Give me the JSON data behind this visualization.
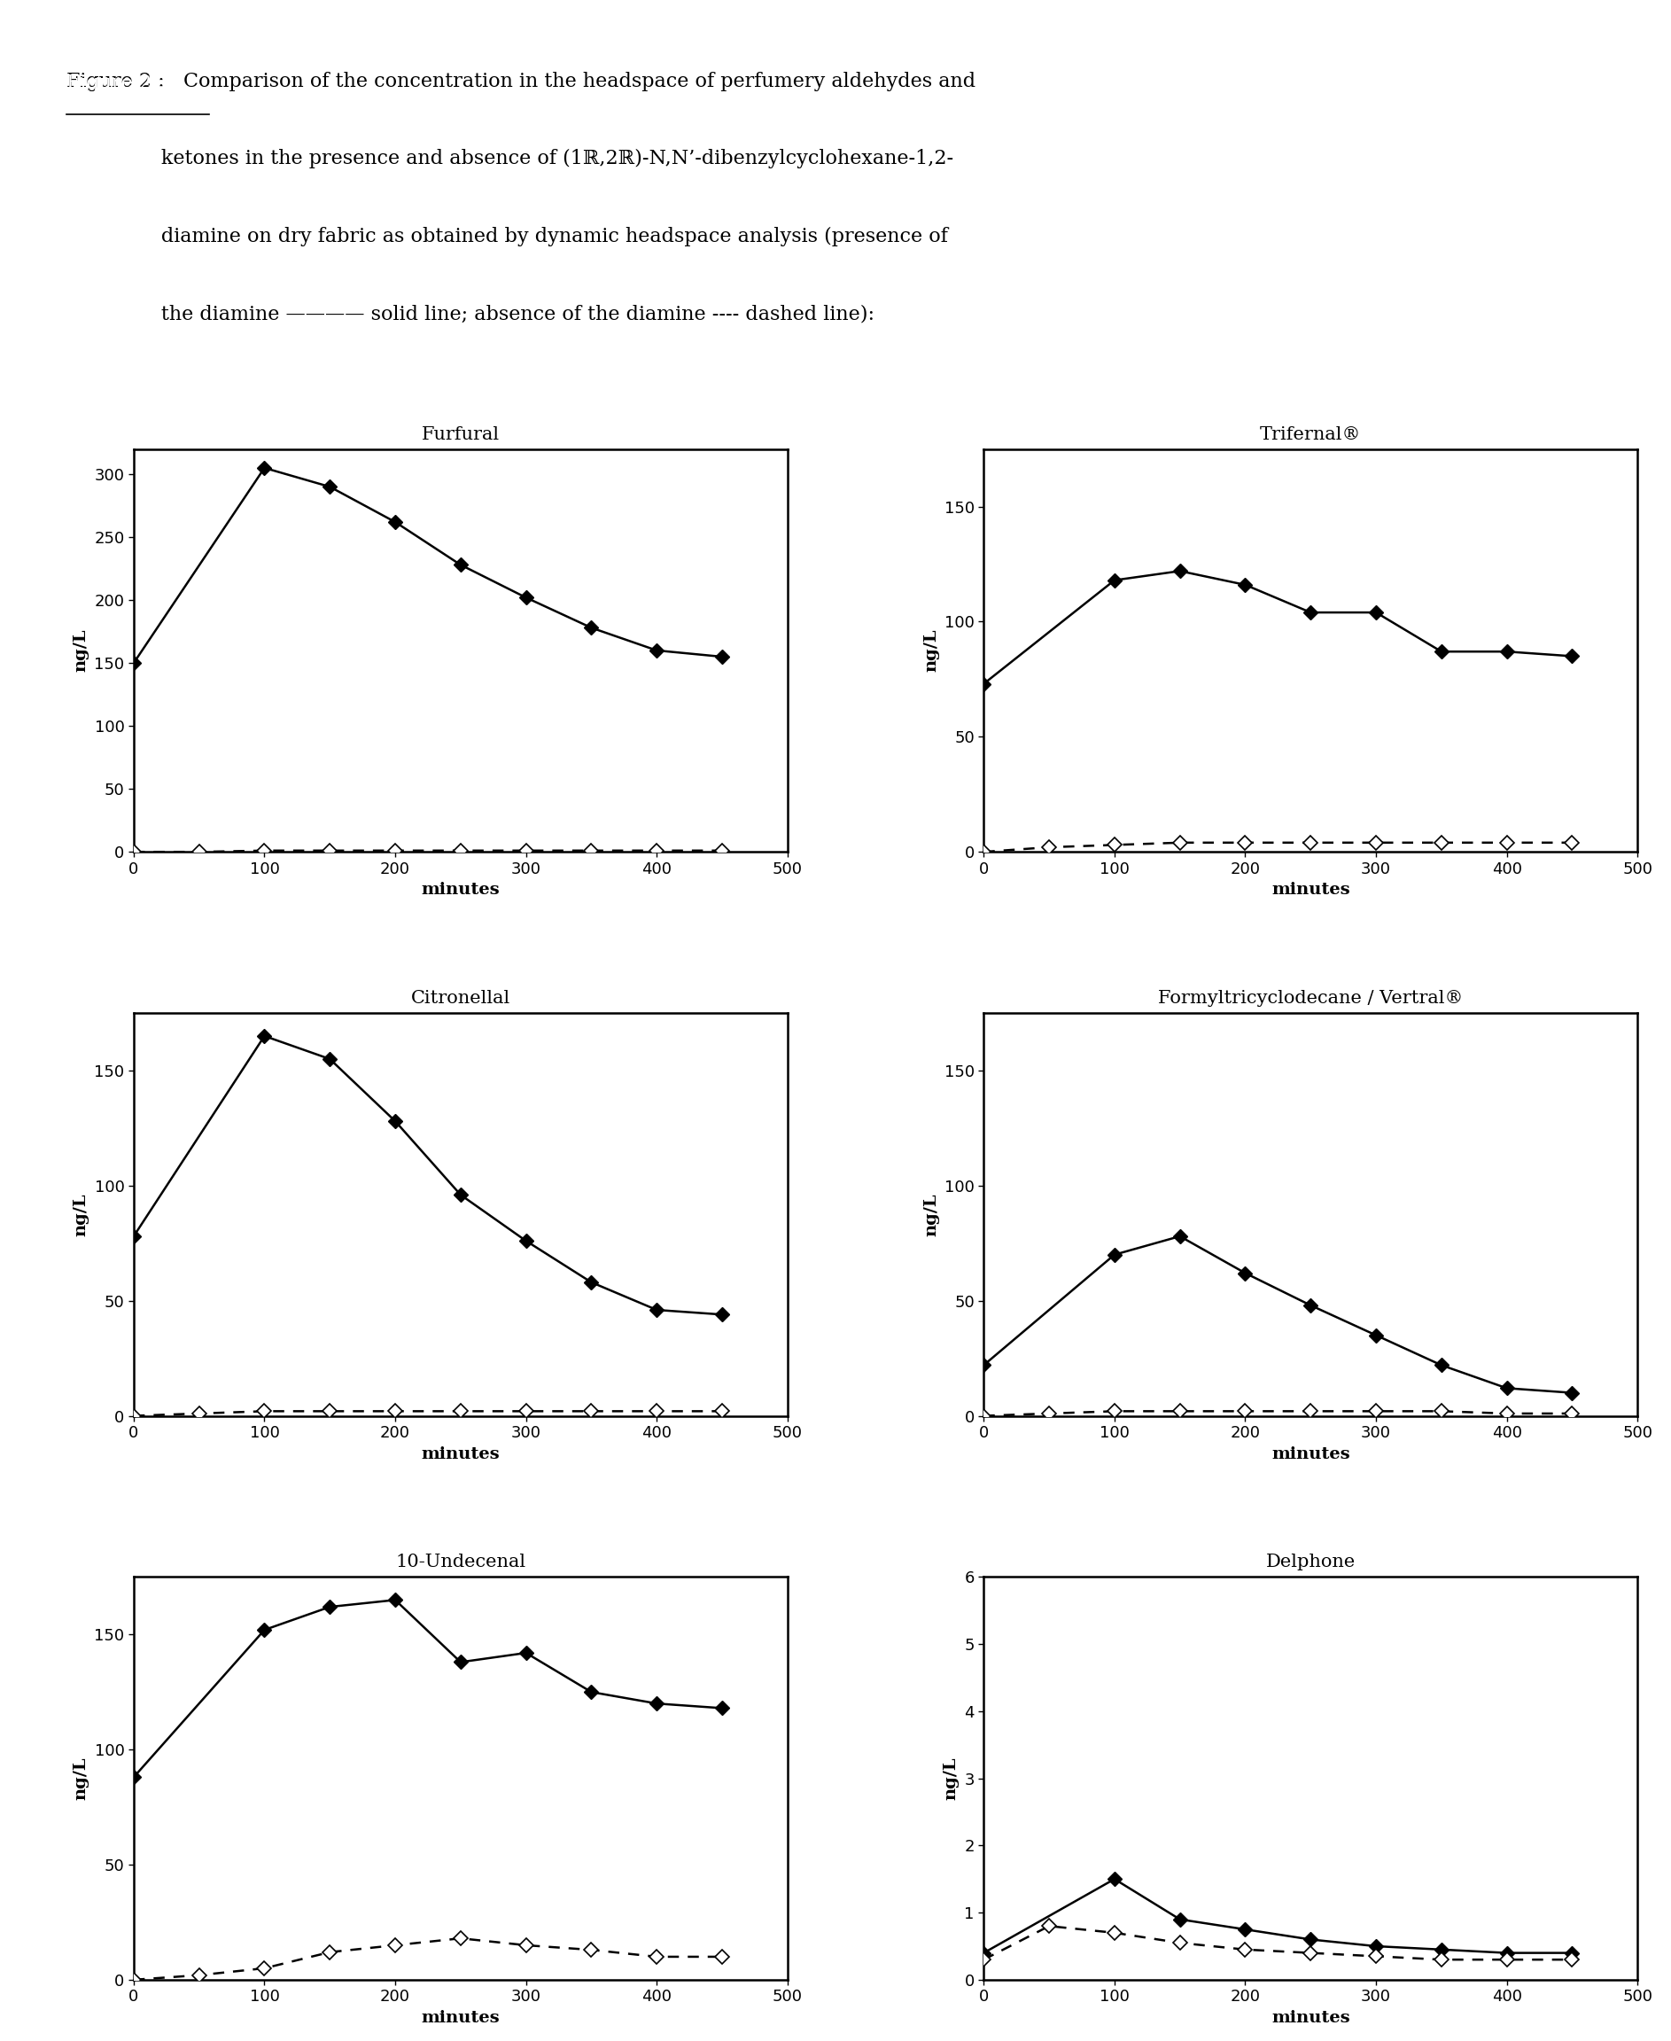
{
  "plots": [
    {
      "title": "Furfural",
      "x_solid": [
        0,
        100,
        150,
        200,
        250,
        300,
        350,
        400,
        450
      ],
      "y_solid": [
        150,
        305,
        290,
        262,
        228,
        202,
        178,
        160,
        155
      ],
      "x_dashed": [
        0,
        50,
        100,
        150,
        200,
        250,
        300,
        350,
        400,
        450
      ],
      "y_dashed": [
        0,
        0,
        1,
        1,
        1,
        1,
        1,
        1,
        1,
        1
      ],
      "ylim": [
        0,
        320
      ],
      "yticks": [
        0,
        50,
        100,
        150,
        200,
        250,
        300
      ],
      "xlim": [
        0,
        500
      ],
      "xticks": [
        0,
        100,
        200,
        300,
        400,
        500
      ]
    },
    {
      "title": "Trifernal®",
      "x_solid": [
        0,
        100,
        150,
        200,
        250,
        300,
        350,
        400,
        450
      ],
      "y_solid": [
        73,
        118,
        122,
        116,
        104,
        104,
        87,
        87,
        85
      ],
      "x_dashed": [
        0,
        50,
        100,
        150,
        200,
        250,
        300,
        350,
        400,
        450
      ],
      "y_dashed": [
        0,
        2,
        3,
        4,
        4,
        4,
        4,
        4,
        4,
        4
      ],
      "ylim": [
        0,
        175
      ],
      "yticks": [
        0,
        50,
        100,
        150
      ],
      "xlim": [
        0,
        500
      ],
      "xticks": [
        0,
        100,
        200,
        300,
        400,
        500
      ]
    },
    {
      "title": "Citronellal",
      "x_solid": [
        0,
        100,
        150,
        200,
        250,
        300,
        350,
        400,
        450
      ],
      "y_solid": [
        78,
        165,
        155,
        128,
        96,
        76,
        58,
        46,
        44
      ],
      "x_dashed": [
        0,
        50,
        100,
        150,
        200,
        250,
        300,
        350,
        400,
        450
      ],
      "y_dashed": [
        0,
        1,
        2,
        2,
        2,
        2,
        2,
        2,
        2,
        2
      ],
      "ylim": [
        0,
        175
      ],
      "yticks": [
        0,
        50,
        100,
        150
      ],
      "xlim": [
        0,
        500
      ],
      "xticks": [
        0,
        100,
        200,
        300,
        400,
        500
      ]
    },
    {
      "title": "Formyltricyclodecane / Vertral®",
      "x_solid": [
        0,
        100,
        150,
        200,
        250,
        300,
        350,
        400,
        450
      ],
      "y_solid": [
        22,
        70,
        78,
        62,
        48,
        35,
        22,
        12,
        10
      ],
      "x_dashed": [
        0,
        50,
        100,
        150,
        200,
        250,
        300,
        350,
        400,
        450
      ],
      "y_dashed": [
        0,
        1,
        2,
        2,
        2,
        2,
        2,
        2,
        1,
        1
      ],
      "ylim": [
        0,
        175
      ],
      "yticks": [
        0,
        50,
        100,
        150
      ],
      "xlim": [
        0,
        500
      ],
      "xticks": [
        0,
        100,
        200,
        300,
        400,
        500
      ]
    },
    {
      "title": "10-Undecenal",
      "x_solid": [
        0,
        100,
        150,
        200,
        250,
        300,
        350,
        400,
        450
      ],
      "y_solid": [
        88,
        152,
        162,
        165,
        138,
        142,
        125,
        120,
        118
      ],
      "x_dashed": [
        0,
        50,
        100,
        150,
        200,
        250,
        300,
        350,
        400,
        450
      ],
      "y_dashed": [
        0,
        2,
        5,
        12,
        15,
        18,
        15,
        13,
        10,
        10
      ],
      "ylim": [
        0,
        175
      ],
      "yticks": [
        0,
        50,
        100,
        150
      ],
      "xlim": [
        0,
        500
      ],
      "xticks": [
        0,
        100,
        200,
        300,
        400,
        500
      ]
    },
    {
      "title": "Delphone",
      "x_solid": [
        0,
        100,
        150,
        200,
        250,
        300,
        350,
        400,
        450
      ],
      "y_solid": [
        0.4,
        1.5,
        0.9,
        0.75,
        0.6,
        0.5,
        0.45,
        0.4,
        0.4
      ],
      "x_dashed": [
        0,
        50,
        100,
        150,
        200,
        250,
        300,
        350,
        400,
        450
      ],
      "y_dashed": [
        0.3,
        0.8,
        0.7,
        0.55,
        0.45,
        0.4,
        0.35,
        0.3,
        0.3,
        0.3
      ],
      "ylim": [
        0,
        6
      ],
      "yticks": [
        0,
        1,
        2,
        3,
        4,
        5,
        6
      ],
      "xlim": [
        0,
        500
      ],
      "xticks": [
        0,
        100,
        200,
        300,
        400,
        500
      ]
    }
  ],
  "xlabel": "minutes",
  "ylabel": "ng/L",
  "line_color": "#000000",
  "marker_size": 8,
  "linewidth": 1.8,
  "background_color": "#ffffff",
  "caption_line1": "Figure 2 :   Comparison of the concentration in the headspace of perfumery aldehydes and",
  "caption_line2": "               ketones in the presence and absence of (1ℝ,2ℝ)-N,N’-dibenzylcyclohexane-1,2-",
  "caption_line3": "               diamine on dry fabric as obtained by dynamic headspace analysis (presence of",
  "caption_line4": "               the diamine ———— solid line; absence of the diamine ---- dashed line):"
}
